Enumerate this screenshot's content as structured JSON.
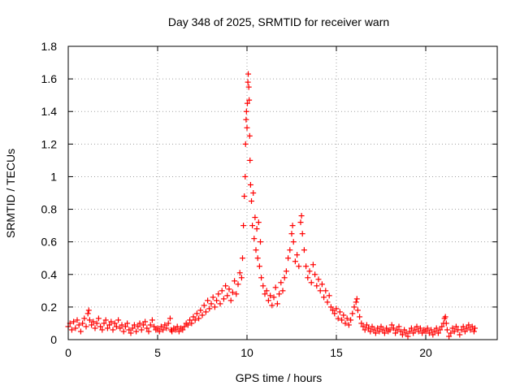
{
  "chart_data": {
    "type": "scatter",
    "title": "Day 348 of 2025, SRMTID for receiver warn",
    "xlabel": "GPS time / hours",
    "ylabel": "SRMTID / TECUs",
    "xlim": [
      0,
      24
    ],
    "ylim": [
      0,
      1.8
    ],
    "xticks": [
      0,
      5,
      10,
      15,
      20
    ],
    "xtick_labels": [
      "0",
      "5",
      "10",
      "15",
      "20"
    ],
    "yticks": [
      0,
      0.2,
      0.4,
      0.6,
      0.8,
      1.0,
      1.2,
      1.4,
      1.6,
      1.8
    ],
    "ytick_labels": [
      "0",
      "0.2",
      "0.4",
      "0.6",
      "0.8",
      "1",
      "1.2",
      "1.4",
      "1.6",
      "1.8"
    ],
    "grid": true,
    "marker": "+",
    "color": "#ff0000",
    "series": [
      {
        "name": "SRMTID",
        "points": [
          [
            0.0,
            0.08
          ],
          [
            0.1,
            0.1
          ],
          [
            0.2,
            0.06
          ],
          [
            0.3,
            0.11
          ],
          [
            0.4,
            0.07
          ],
          [
            0.5,
            0.12
          ],
          [
            0.6,
            0.09
          ],
          [
            0.7,
            0.05
          ],
          [
            0.8,
            0.1
          ],
          [
            0.9,
            0.13
          ],
          [
            1.0,
            0.08
          ],
          [
            1.1,
            0.16
          ],
          [
            1.15,
            0.18
          ],
          [
            1.2,
            0.12
          ],
          [
            1.3,
            0.09
          ],
          [
            1.4,
            0.11
          ],
          [
            1.5,
            0.07
          ],
          [
            1.6,
            0.1
          ],
          [
            1.7,
            0.13
          ],
          [
            1.8,
            0.08
          ],
          [
            1.9,
            0.06
          ],
          [
            2.0,
            0.1
          ],
          [
            2.1,
            0.12
          ],
          [
            2.2,
            0.07
          ],
          [
            2.3,
            0.09
          ],
          [
            2.4,
            0.11
          ],
          [
            2.5,
            0.06
          ],
          [
            2.6,
            0.1
          ],
          [
            2.7,
            0.08
          ],
          [
            2.8,
            0.12
          ],
          [
            2.9,
            0.07
          ],
          [
            3.0,
            0.09
          ],
          [
            3.1,
            0.05
          ],
          [
            3.2,
            0.08
          ],
          [
            3.3,
            0.1
          ],
          [
            3.4,
            0.06
          ],
          [
            3.5,
            0.04
          ],
          [
            3.6,
            0.07
          ],
          [
            3.7,
            0.09
          ],
          [
            3.8,
            0.05
          ],
          [
            3.9,
            0.08
          ],
          [
            4.0,
            0.1
          ],
          [
            4.1,
            0.06
          ],
          [
            4.2,
            0.09
          ],
          [
            4.3,
            0.11
          ],
          [
            4.4,
            0.07
          ],
          [
            4.5,
            0.05
          ],
          [
            4.6,
            0.09
          ],
          [
            4.7,
            0.12
          ],
          [
            4.8,
            0.08
          ],
          [
            4.9,
            0.06
          ],
          [
            5.0,
            0.07
          ],
          [
            5.1,
            0.05
          ],
          [
            5.2,
            0.08
          ],
          [
            5.3,
            0.06
          ],
          [
            5.4,
            0.09
          ],
          [
            5.5,
            0.07
          ],
          [
            5.6,
            0.1
          ],
          [
            5.7,
            0.13
          ],
          [
            5.75,
            0.06
          ],
          [
            5.8,
            0.05
          ],
          [
            5.9,
            0.07
          ],
          [
            6.0,
            0.06
          ],
          [
            6.1,
            0.08
          ],
          [
            6.2,
            0.05
          ],
          [
            6.3,
            0.07
          ],
          [
            6.4,
            0.06
          ],
          [
            6.5,
            0.08
          ],
          [
            6.6,
            0.1
          ],
          [
            6.7,
            0.09
          ],
          [
            6.8,
            0.12
          ],
          [
            6.9,
            0.1
          ],
          [
            7.0,
            0.14
          ],
          [
            7.1,
            0.12
          ],
          [
            7.2,
            0.16
          ],
          [
            7.3,
            0.13
          ],
          [
            7.4,
            0.18
          ],
          [
            7.5,
            0.15
          ],
          [
            7.6,
            0.21
          ],
          [
            7.7,
            0.17
          ],
          [
            7.8,
            0.24
          ],
          [
            7.9,
            0.19
          ],
          [
            8.0,
            0.22
          ],
          [
            8.1,
            0.26
          ],
          [
            8.2,
            0.2
          ],
          [
            8.3,
            0.24
          ],
          [
            8.4,
            0.28
          ],
          [
            8.5,
            0.22
          ],
          [
            8.6,
            0.3
          ],
          [
            8.7,
            0.25
          ],
          [
            8.8,
            0.33
          ],
          [
            8.9,
            0.27
          ],
          [
            9.0,
            0.31
          ],
          [
            9.1,
            0.24
          ],
          [
            9.2,
            0.29
          ],
          [
            9.3,
            0.36
          ],
          [
            9.4,
            0.28
          ],
          [
            9.5,
            0.34
          ],
          [
            9.6,
            0.41
          ],
          [
            9.7,
            0.38
          ],
          [
            9.75,
            0.5
          ],
          [
            9.8,
            0.7
          ],
          [
            9.85,
            0.88
          ],
          [
            9.9,
            1.0
          ],
          [
            9.92,
            1.2
          ],
          [
            9.95,
            1.35
          ],
          [
            9.97,
            1.4
          ],
          [
            10.0,
            1.3
          ],
          [
            10.02,
            1.45
          ],
          [
            10.05,
            1.58
          ],
          [
            10.07,
            1.63
          ],
          [
            10.1,
            1.55
          ],
          [
            10.12,
            1.47
          ],
          [
            10.15,
            1.25
          ],
          [
            10.17,
            1.1
          ],
          [
            10.2,
            0.95
          ],
          [
            10.25,
            0.85
          ],
          [
            10.3,
            0.7
          ],
          [
            10.35,
            0.9
          ],
          [
            10.4,
            0.62
          ],
          [
            10.45,
            0.75
          ],
          [
            10.5,
            0.55
          ],
          [
            10.55,
            0.68
          ],
          [
            10.6,
            0.5
          ],
          [
            10.65,
            0.72
          ],
          [
            10.7,
            0.45
          ],
          [
            10.75,
            0.6
          ],
          [
            10.8,
            0.38
          ],
          [
            10.9,
            0.33
          ],
          [
            11.0,
            0.28
          ],
          [
            11.1,
            0.3
          ],
          [
            11.2,
            0.24
          ],
          [
            11.3,
            0.27
          ],
          [
            11.4,
            0.21
          ],
          [
            11.5,
            0.26
          ],
          [
            11.6,
            0.32
          ],
          [
            11.7,
            0.22
          ],
          [
            11.8,
            0.28
          ],
          [
            11.9,
            0.35
          ],
          [
            12.0,
            0.3
          ],
          [
            12.1,
            0.38
          ],
          [
            12.2,
            0.42
          ],
          [
            12.3,
            0.5
          ],
          [
            12.4,
            0.55
          ],
          [
            12.5,
            0.65
          ],
          [
            12.55,
            0.7
          ],
          [
            12.6,
            0.6
          ],
          [
            12.7,
            0.48
          ],
          [
            12.8,
            0.52
          ],
          [
            12.9,
            0.45
          ],
          [
            13.0,
            0.72
          ],
          [
            13.05,
            0.76
          ],
          [
            13.1,
            0.65
          ],
          [
            13.2,
            0.55
          ],
          [
            13.3,
            0.45
          ],
          [
            13.4,
            0.38
          ],
          [
            13.5,
            0.42
          ],
          [
            13.6,
            0.35
          ],
          [
            13.7,
            0.46
          ],
          [
            13.8,
            0.4
          ],
          [
            13.9,
            0.33
          ],
          [
            14.0,
            0.37
          ],
          [
            14.1,
            0.3
          ],
          [
            14.2,
            0.34
          ],
          [
            14.3,
            0.26
          ],
          [
            14.4,
            0.3
          ],
          [
            14.5,
            0.23
          ],
          [
            14.6,
            0.27
          ],
          [
            14.7,
            0.2
          ],
          [
            14.8,
            0.18
          ],
          [
            14.9,
            0.16
          ],
          [
            15.0,
            0.19
          ],
          [
            15.1,
            0.13
          ],
          [
            15.2,
            0.17
          ],
          [
            15.3,
            0.12
          ],
          [
            15.4,
            0.15
          ],
          [
            15.5,
            0.1
          ],
          [
            15.6,
            0.13
          ],
          [
            15.7,
            0.09
          ],
          [
            15.8,
            0.12
          ],
          [
            15.9,
            0.16
          ],
          [
            16.0,
            0.2
          ],
          [
            16.1,
            0.23
          ],
          [
            16.15,
            0.25
          ],
          [
            16.2,
            0.18
          ],
          [
            16.3,
            0.14
          ],
          [
            16.4,
            0.1
          ],
          [
            16.5,
            0.08
          ],
          [
            16.6,
            0.06
          ],
          [
            16.7,
            0.09
          ],
          [
            16.8,
            0.07
          ],
          [
            16.9,
            0.05
          ],
          [
            17.0,
            0.08
          ],
          [
            17.1,
            0.06
          ],
          [
            17.2,
            0.04
          ],
          [
            17.3,
            0.07
          ],
          [
            17.4,
            0.05
          ],
          [
            17.5,
            0.08
          ],
          [
            17.6,
            0.06
          ],
          [
            17.7,
            0.04
          ],
          [
            17.8,
            0.07
          ],
          [
            17.9,
            0.05
          ],
          [
            18.0,
            0.06
          ],
          [
            18.1,
            0.09
          ],
          [
            18.2,
            0.07
          ],
          [
            18.3,
            0.04
          ],
          [
            18.4,
            0.06
          ],
          [
            18.5,
            0.08
          ],
          [
            18.6,
            0.05
          ],
          [
            18.7,
            0.03
          ],
          [
            18.8,
            0.06
          ],
          [
            18.9,
            0.04
          ],
          [
            19.0,
            0.02
          ],
          [
            19.1,
            0.05
          ],
          [
            19.2,
            0.07
          ],
          [
            19.3,
            0.04
          ],
          [
            19.4,
            0.06
          ],
          [
            19.5,
            0.08
          ],
          [
            19.6,
            0.05
          ],
          [
            19.7,
            0.07
          ],
          [
            19.8,
            0.04
          ],
          [
            19.9,
            0.06
          ],
          [
            20.0,
            0.05
          ],
          [
            20.1,
            0.07
          ],
          [
            20.2,
            0.04
          ],
          [
            20.3,
            0.06
          ],
          [
            20.4,
            0.03
          ],
          [
            20.5,
            0.05
          ],
          [
            20.6,
            0.07
          ],
          [
            20.7,
            0.04
          ],
          [
            20.8,
            0.06
          ],
          [
            20.9,
            0.08
          ],
          [
            21.0,
            0.1
          ],
          [
            21.05,
            0.13
          ],
          [
            21.1,
            0.14
          ],
          [
            21.15,
            0.1
          ],
          [
            21.2,
            0.06
          ],
          [
            21.3,
            0.02
          ],
          [
            21.4,
            0.04
          ],
          [
            21.5,
            0.07
          ],
          [
            21.6,
            0.05
          ],
          [
            21.7,
            0.08
          ],
          [
            21.8,
            0.06
          ],
          [
            21.9,
            0.03
          ],
          [
            22.0,
            0.06
          ],
          [
            22.1,
            0.08
          ],
          [
            22.2,
            0.05
          ],
          [
            22.3,
            0.07
          ],
          [
            22.4,
            0.09
          ],
          [
            22.5,
            0.06
          ],
          [
            22.6,
            0.08
          ],
          [
            22.7,
            0.05
          ],
          [
            22.75,
            0.07
          ]
        ]
      }
    ]
  }
}
